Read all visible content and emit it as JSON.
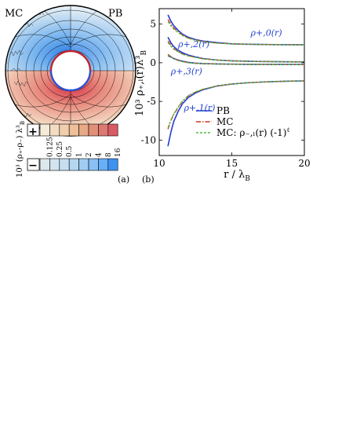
{
  "panel_a": {
    "label": "(a)",
    "left_label": "MC",
    "right_label": "PB",
    "colorbar_ylabel": "10³ (ρ₊-ρ₋) λ³",
    "colorbar_ylabel_sub": "B",
    "plus_sign": "+",
    "minus_sign": "−",
    "ticks": [
      "0.125",
      "0.25",
      "0.5",
      "1",
      "2",
      "4",
      "8",
      "16"
    ],
    "positive_colors": [
      "#f6ead9",
      "#f4dcc3",
      "#f1cfae",
      "#eebf98",
      "#e8a987",
      "#e28f79",
      "#de7872",
      "#d85a63"
    ],
    "negative_colors": [
      "#dde8ee",
      "#d3e4ee",
      "#c5def0",
      "#b5d7f1",
      "#a1cdf3",
      "#89c0f5",
      "#66b0f7",
      "#3e92f0"
    ]
  },
  "panel_b": {
    "label": "(b)"
  },
  "chart_data": {
    "type": "line",
    "xlabel": "r / λ",
    "xlabel_sub": "B",
    "ylabel": "10³ ρ₊,ₗ(r)λ³",
    "ylabel_sub": "B",
    "xlim": [
      10,
      20
    ],
    "ylim": [
      -12,
      7
    ],
    "xticks": [
      10,
      15,
      20
    ],
    "yticks": [
      -10,
      -5,
      0,
      5
    ],
    "grid": false,
    "legend_position": "lower-right",
    "colors": {
      "PB": "#1f3fd0",
      "MC": "#d2301f",
      "MC_neg": "#4cc23a"
    },
    "legend": [
      {
        "name": "PB",
        "style": "solid",
        "color": "#1f3fd0"
      },
      {
        "name": "MC",
        "style": "dash-dot",
        "color": "#d2301f"
      },
      {
        "name": "MC: ρ₋,ₗ(r) (-1)",
        "sup": "ℓ",
        "style": "dashed",
        "color": "#4cc23a"
      }
    ],
    "annotations": [
      {
        "text": "ρ+,0(r)",
        "x": 16.3,
        "y": 3.5
      },
      {
        "text": "ρ+,2(r)",
        "x": 11.3,
        "y": 2.0
      },
      {
        "text": "ρ+,3(r)",
        "x": 10.8,
        "y": -1.5
      },
      {
        "text": "ρ+,1(r)",
        "x": 11.7,
        "y": -6.2
      }
    ],
    "x": [
      10.6,
      10.8,
      11.0,
      11.3,
      11.6,
      12.0,
      12.5,
      13.0,
      14.0,
      15.0,
      16.0,
      17.0,
      18.0,
      19.0,
      20.0
    ],
    "series": [
      {
        "name": "PB",
        "curve": "l=0",
        "values": [
          6.2,
          5.4,
          4.8,
          4.2,
          3.7,
          3.3,
          3.0,
          2.8,
          2.6,
          2.45,
          2.4,
          2.37,
          2.35,
          2.34,
          2.33
        ]
      },
      {
        "name": "MC",
        "curve": "l=0",
        "values": [
          5.6,
          5.0,
          4.5,
          4.0,
          3.6,
          3.2,
          2.95,
          2.75,
          2.55,
          2.45,
          2.4,
          2.37,
          2.35,
          2.34,
          2.33
        ]
      },
      {
        "name": "MC: ρ₋,ₗ(r) (-1)ˡ",
        "curve": "l=0",
        "values": [
          5.3,
          4.8,
          4.35,
          3.9,
          3.5,
          3.15,
          2.9,
          2.72,
          2.52,
          2.44,
          2.4,
          2.37,
          2.35,
          2.34,
          2.33
        ]
      },
      {
        "name": "PB",
        "curve": "l=2",
        "values": [
          3.3,
          2.6,
          2.1,
          1.6,
          1.3,
          1.0,
          0.75,
          0.55,
          0.35,
          0.25,
          0.2,
          0.16,
          0.14,
          0.12,
          0.11
        ]
      },
      {
        "name": "MC",
        "curve": "l=2",
        "values": [
          2.8,
          2.3,
          1.85,
          1.45,
          1.15,
          0.9,
          0.7,
          0.52,
          0.34,
          0.24,
          0.19,
          0.16,
          0.14,
          0.12,
          0.11
        ]
      },
      {
        "name": "MC: ρ₋,ₗ(r) (-1)ˡ",
        "curve": "l=2",
        "values": [
          2.6,
          2.15,
          1.75,
          1.4,
          1.1,
          0.87,
          0.68,
          0.5,
          0.33,
          0.24,
          0.19,
          0.16,
          0.14,
          0.12,
          0.11
        ]
      },
      {
        "name": "PB",
        "curve": "l=3",
        "values": [
          0.9,
          0.75,
          0.55,
          0.35,
          0.2,
          0.05,
          -0.05,
          -0.1,
          -0.15,
          -0.18,
          -0.2,
          -0.21,
          -0.22,
          -0.22,
          -0.22
        ]
      },
      {
        "name": "MC",
        "curve": "l=3",
        "values": [
          1.1,
          0.8,
          0.55,
          0.3,
          0.15,
          0.02,
          -0.07,
          -0.12,
          -0.16,
          -0.18,
          -0.2,
          -0.21,
          -0.22,
          -0.22,
          -0.22
        ]
      },
      {
        "name": "MC: ρ₋,ₗ(r) (-1)ˡ",
        "curve": "l=3",
        "values": [
          1.0,
          0.75,
          0.5,
          0.28,
          0.13,
          0.0,
          -0.08,
          -0.12,
          -0.16,
          -0.18,
          -0.2,
          -0.21,
          -0.22,
          -0.22,
          -0.22
        ]
      },
      {
        "name": "PB",
        "curve": "l=1",
        "values": [
          -10.8,
          -9.0,
          -7.6,
          -6.3,
          -5.3,
          -4.5,
          -3.9,
          -3.5,
          -3.0,
          -2.75,
          -2.6,
          -2.5,
          -2.43,
          -2.38,
          -2.35
        ]
      },
      {
        "name": "MC",
        "curve": "l=1",
        "values": [
          -8.6,
          -7.5,
          -6.7,
          -5.8,
          -5.0,
          -4.3,
          -3.8,
          -3.45,
          -3.0,
          -2.75,
          -2.6,
          -2.5,
          -2.43,
          -2.38,
          -2.35
        ]
      },
      {
        "name": "MC: ρ₋,ₗ(r) (-1)ˡ",
        "curve": "l=1",
        "values": [
          -8.4,
          -7.4,
          -6.6,
          -5.7,
          -4.95,
          -4.25,
          -3.75,
          -3.42,
          -2.98,
          -2.74,
          -2.6,
          -2.5,
          -2.43,
          -2.38,
          -2.35
        ]
      }
    ]
  }
}
